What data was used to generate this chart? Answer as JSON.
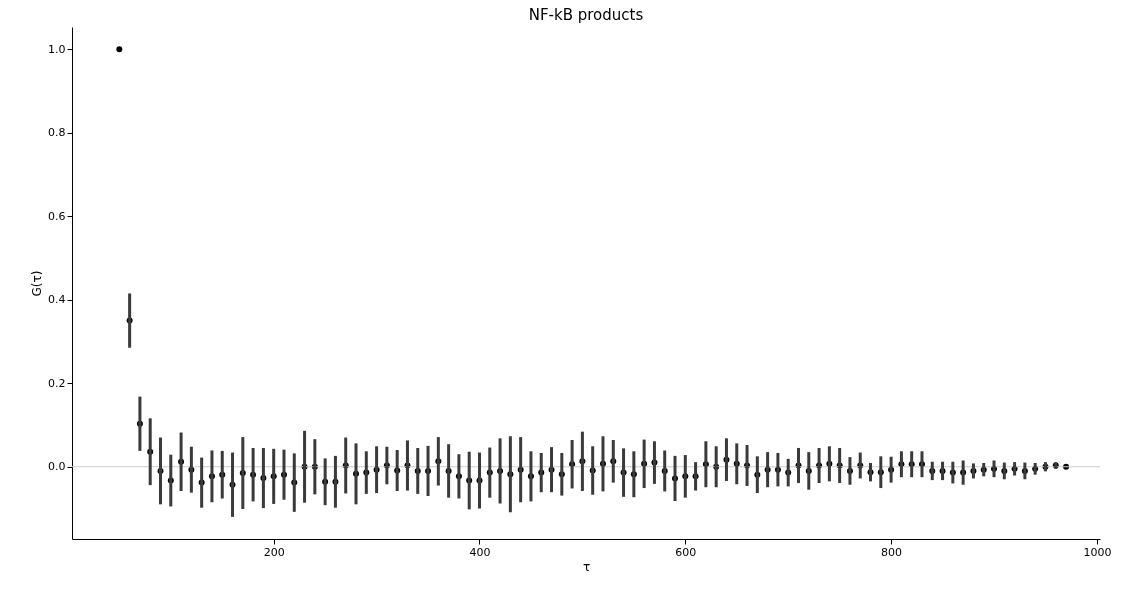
{
  "chart_data": {
    "type": "scatter",
    "title": "NF-kB products",
    "xlabel": "τ",
    "ylabel": "G(τ)",
    "x": [
      50,
      60,
      70,
      80,
      90,
      100,
      110,
      120,
      130,
      140,
      150,
      160,
      170,
      180,
      190,
      200,
      210,
      220,
      230,
      240,
      250,
      260,
      270,
      280,
      290,
      300,
      310,
      320,
      330,
      340,
      350,
      360,
      370,
      380,
      390,
      400,
      410,
      420,
      430,
      440,
      450,
      460,
      470,
      480,
      490,
      500,
      510,
      520,
      530,
      540,
      550,
      560,
      570,
      580,
      590,
      600,
      610,
      620,
      630,
      640,
      650,
      660,
      670,
      680,
      690,
      700,
      710,
      720,
      730,
      740,
      750,
      760,
      770,
      780,
      790,
      800,
      810,
      820,
      830,
      840,
      850,
      860,
      870,
      880,
      890,
      900,
      910,
      920,
      930,
      940,
      950,
      960,
      970
    ],
    "series": [
      {
        "color": "#000000",
        "values": [
          1.0,
          0.35,
          0.103,
          0.036,
          -0.01,
          -0.033,
          0.012,
          -0.007,
          -0.038,
          -0.023,
          -0.019,
          -0.043,
          -0.015,
          -0.019,
          -0.027,
          -0.023,
          -0.019,
          -0.038,
          0.0,
          0.0,
          -0.036,
          -0.036,
          0.003,
          -0.017,
          -0.014,
          -0.007,
          0.003,
          -0.009,
          0.003,
          -0.01,
          -0.01,
          0.013,
          -0.01,
          -0.023,
          -0.033,
          -0.033,
          -0.014,
          -0.01,
          -0.018,
          -0.007,
          -0.023,
          -0.014,
          -0.007,
          -0.018,
          0.006,
          0.013,
          -0.009,
          0.007,
          0.013,
          -0.014,
          -0.018,
          0.007,
          0.01,
          -0.01,
          -0.028,
          -0.023,
          -0.023,
          0.006,
          0.0,
          0.017,
          0.007,
          0.003,
          -0.019,
          -0.007,
          -0.007,
          -0.014,
          0.003,
          -0.01,
          0.003,
          0.007,
          0.003,
          -0.01,
          0.003,
          -0.013,
          -0.013,
          -0.007,
          0.006,
          0.006,
          0.006,
          -0.01,
          -0.01,
          -0.014,
          -0.014,
          -0.01,
          -0.007,
          -0.005,
          -0.01,
          -0.005,
          -0.01,
          -0.005,
          0.0,
          0.003,
          0.0
        ],
        "errors": [
          null,
          0.065,
          0.065,
          0.08,
          0.08,
          0.062,
          0.07,
          0.055,
          0.06,
          0.062,
          0.057,
          0.077,
          0.086,
          0.064,
          0.072,
          0.066,
          0.06,
          0.07,
          0.086,
          0.066,
          0.056,
          0.062,
          0.067,
          0.073,
          0.051,
          0.056,
          0.045,
          0.049,
          0.06,
          0.055,
          0.06,
          0.058,
          0.064,
          0.053,
          0.069,
          0.067,
          0.06,
          0.078,
          0.091,
          0.078,
          0.06,
          0.047,
          0.054,
          0.051,
          0.058,
          0.071,
          0.058,
          0.066,
          0.051,
          0.058,
          0.055,
          0.058,
          0.051,
          0.049,
          0.054,
          0.051,
          0.034,
          0.055,
          0.049,
          0.051,
          0.049,
          0.049,
          0.044,
          0.042,
          0.04,
          0.033,
          0.042,
          0.045,
          0.042,
          0.042,
          0.042,
          0.033,
          0.031,
          0.022,
          0.038,
          0.031,
          0.031,
          0.031,
          0.031,
          0.022,
          0.022,
          0.026,
          0.029,
          0.018,
          0.016,
          0.02,
          0.02,
          0.016,
          0.02,
          0.014,
          0.011,
          0.008,
          null
        ]
      }
    ],
    "xlim": [
      4,
      1003
    ],
    "xticks": [
      200,
      400,
      600,
      800,
      {
        "value": 1000,
        "label": "1000"
      }
    ],
    "ylim": [
      -0.173,
      1.053
    ],
    "yticks": [
      {
        "value": 0,
        "label": "0.0"
      },
      {
        "value": 0.2,
        "label": "0.2"
      },
      {
        "value": 0.4,
        "label": "0.4"
      },
      {
        "value": 0.6,
        "label": "0.6"
      },
      {
        "value": 0.8,
        "label": "0.8"
      },
      {
        "value": 1.0,
        "label": "1.0"
      }
    ],
    "ref_lines": [
      {
        "axis": "y",
        "value": 0,
        "color": "#cccccc"
      }
    ],
    "marker": "circle",
    "grid": false
  }
}
